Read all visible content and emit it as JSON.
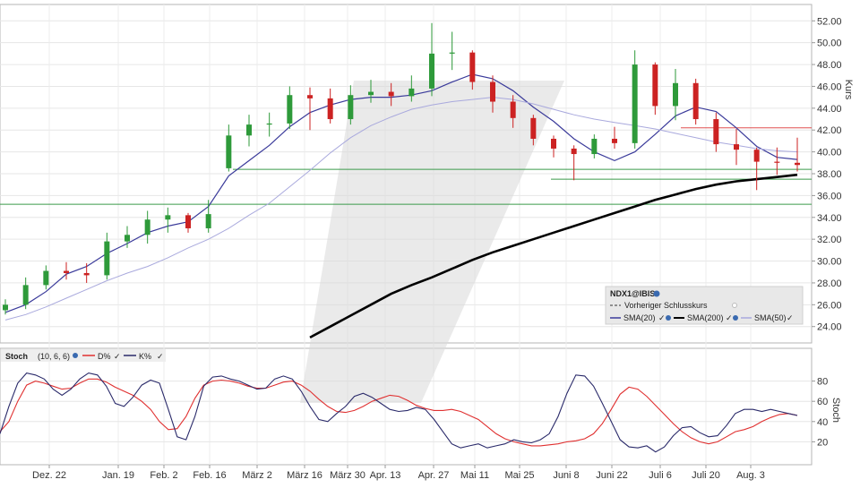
{
  "chart_data": [
    {
      "type": "candlestick",
      "symbol_label": "NDX1@IBIS",
      "legend_line": "Vorheriger Schlusskurs",
      "ylabel": "Kurs",
      "ylim": [
        22.5,
        53.5
      ],
      "y_ticks": [
        "52.00",
        "50.00",
        "48.00",
        "46.00",
        "44.00",
        "42.00",
        "40.00",
        "38.00",
        "36.00",
        "34.00",
        "32.00",
        "30.00",
        "28.00",
        "26.00",
        "24.00"
      ],
      "x_ticks": [
        "Dez. 22",
        "Jan. 19",
        "Feb. 2",
        "Feb. 16",
        "März 2",
        "März 16",
        "März 30",
        "Apr. 13",
        "Apr. 27",
        "Mai 11",
        "Mai 25",
        "Juni 8",
        "Juni 22",
        "Juli 6",
        "Juli 20",
        "Aug. 3"
      ],
      "series": [
        {
          "name": "SMA(20)",
          "color": "#3a3a9a",
          "values": [
            25.3,
            26.0,
            27.2,
            28.8,
            29.5,
            30.7,
            31.6,
            32.6,
            33.2,
            33.6,
            35.0,
            37.8,
            39.2,
            40.6,
            42.3,
            43.6,
            44.3,
            44.8,
            45.0,
            45.0,
            45.2,
            45.6,
            46.4,
            47.1,
            46.7,
            45.6,
            44.1,
            42.8,
            41.2,
            40.0,
            39.2,
            40.0,
            41.6,
            43.3,
            44.1,
            43.7,
            42.2,
            40.5,
            39.5,
            39.3
          ]
        },
        {
          "name": "SMA(200)",
          "color": "#000000",
          "values": [
            null,
            null,
            null,
            null,
            null,
            null,
            null,
            null,
            null,
            null,
            null,
            null,
            null,
            null,
            null,
            23.0,
            24.0,
            25.0,
            26.0,
            27.0,
            27.8,
            28.5,
            29.3,
            30.1,
            30.8,
            31.4,
            32.0,
            32.6,
            33.2,
            33.8,
            34.4,
            35.0,
            35.6,
            36.1,
            36.6,
            37.0,
            37.3,
            37.5,
            37.7,
            37.9
          ]
        },
        {
          "name": "SMA(50)",
          "color": "#a9a9dd",
          "values": [
            24.6,
            25.1,
            25.8,
            26.6,
            27.4,
            28.2,
            28.9,
            29.5,
            30.3,
            31.2,
            32.0,
            33.0,
            34.2,
            35.3,
            36.8,
            38.3,
            39.9,
            41.3,
            42.4,
            43.2,
            43.9,
            44.3,
            44.6,
            44.8,
            45.0,
            44.8,
            44.4,
            43.9,
            43.4,
            43.0,
            42.7,
            42.4,
            42.1,
            41.7,
            41.3,
            40.9,
            40.6,
            40.3,
            40.1,
            40.0
          ]
        }
      ],
      "close": [
        26.0,
        27.8,
        29.1,
        28.9,
        28.7,
        31.8,
        32.4,
        33.8,
        34.2,
        33.0,
        34.3,
        41.5,
        42.5,
        42.6,
        45.2,
        44.9,
        43.0,
        45.2,
        45.5,
        45.1,
        45.8,
        49.0,
        49.1,
        46.4,
        44.6,
        43.1,
        41.2,
        40.3,
        39.8,
        41.2,
        40.8,
        48.0,
        44.2,
        46.3,
        43.0,
        40.7,
        40.2,
        39.1,
        39.0,
        38.8
      ],
      "open": [
        25.5,
        26.0,
        27.8,
        29.1,
        28.9,
        28.7,
        31.8,
        32.4,
        33.8,
        34.2,
        33.0,
        38.5,
        41.5,
        42.5,
        42.6,
        45.2,
        44.9,
        43.0,
        45.2,
        45.5,
        45.1,
        45.8,
        49.0,
        49.1,
        46.4,
        44.6,
        43.1,
        41.2,
        40.3,
        39.8,
        41.2,
        40.8,
        48.0,
        44.2,
        46.3,
        43.0,
        40.7,
        40.2,
        39.1,
        39.0
      ],
      "high": [
        26.5,
        28.5,
        29.6,
        29.9,
        29.8,
        32.6,
        33.2,
        34.6,
        34.9,
        34.4,
        35.6,
        42.5,
        43.4,
        43.6,
        46.0,
        45.9,
        45.8,
        46.1,
        46.6,
        46.3,
        47.0,
        51.8,
        51.0,
        49.3,
        47.0,
        45.2,
        43.4,
        41.5,
        40.6,
        41.6,
        42.3,
        49.3,
        48.2,
        47.6,
        46.7,
        43.6,
        42.1,
        40.4,
        40.4,
        41.3
      ],
      "low": [
        25.1,
        25.6,
        27.4,
        28.3,
        28.0,
        28.3,
        31.2,
        31.6,
        32.6,
        32.6,
        32.6,
        38.2,
        40.5,
        41.4,
        42.1,
        42.0,
        42.6,
        42.5,
        44.5,
        44.2,
        44.6,
        45.1,
        47.5,
        45.7,
        43.6,
        42.2,
        40.6,
        39.5,
        37.4,
        39.4,
        40.3,
        40.3,
        43.4,
        42.9,
        42.5,
        40.0,
        38.8,
        36.5,
        37.9,
        38.2
      ],
      "hlines": [
        {
          "value": 42.2,
          "color": "#e05050"
        },
        {
          "value": 38.4,
          "color": "#3a9a4a"
        },
        {
          "value": 37.5,
          "color": "#3a9a4a"
        },
        {
          "value": 35.2,
          "color": "#3a9a4a"
        }
      ],
      "up_color": "#2e9a3a",
      "down_color": "#cc2222"
    },
    {
      "type": "line",
      "title": "Stoch",
      "params": "(10, 6, 6)",
      "ylabel": "Stoch",
      "ylim": [
        0,
        100
      ],
      "y_ticks": [
        "80",
        "60",
        "40",
        "20"
      ],
      "series": [
        {
          "name": "D%",
          "color": "#e03030",
          "values": [
            30,
            40,
            60,
            76,
            80,
            78,
            75,
            72,
            73,
            78,
            82,
            82,
            79,
            74,
            70,
            66,
            60,
            52,
            40,
            32,
            33,
            45,
            63,
            76,
            80,
            81,
            80,
            78,
            75,
            73,
            73,
            76,
            79,
            80,
            76,
            70,
            62,
            55,
            50,
            49,
            51,
            55,
            60,
            63,
            66,
            65,
            61,
            56,
            53,
            51,
            51,
            52,
            50,
            46,
            42,
            35,
            28,
            23,
            20,
            18,
            16,
            16,
            17,
            18,
            20,
            21,
            23,
            28,
            38,
            52,
            67,
            74,
            72,
            65,
            56,
            47,
            38,
            30,
            24,
            20,
            18,
            20,
            25,
            30,
            32,
            35,
            40,
            44,
            47,
            48,
            46
          ]
        },
        {
          "name": "K%",
          "color": "#2a2a6a",
          "values": [
            28,
            55,
            78,
            88,
            86,
            82,
            72,
            66,
            72,
            82,
            88,
            86,
            75,
            58,
            55,
            64,
            76,
            81,
            78,
            52,
            25,
            22,
            45,
            75,
            84,
            85,
            82,
            80,
            76,
            72,
            73,
            82,
            85,
            82,
            70,
            55,
            42,
            40,
            48,
            55,
            65,
            68,
            64,
            58,
            52,
            50,
            51,
            54,
            52,
            42,
            30,
            18,
            14,
            16,
            18,
            14,
            16,
            18,
            22,
            20,
            19,
            22,
            28,
            45,
            68,
            86,
            85,
            75,
            58,
            40,
            22,
            15,
            14,
            16,
            10,
            15,
            26,
            34,
            35,
            29,
            25,
            26,
            36,
            48,
            52,
            52,
            50,
            52,
            50,
            48,
            46
          ]
        }
      ]
    }
  ],
  "legend": {
    "vorheriger_icon": "dashed-line",
    "colors": {
      "panel_bg": "#e6e6e6",
      "grid": "#e2e2e2",
      "watermark": "#d9d9d9"
    }
  },
  "icons": [
    "settings-icon",
    "check-icon"
  ]
}
